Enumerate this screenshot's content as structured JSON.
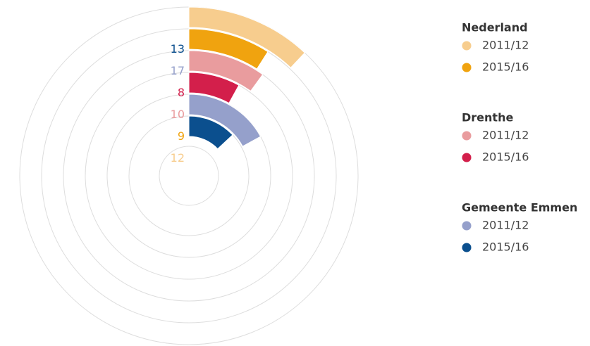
{
  "chart_data": {
    "type": "radial_bar",
    "anglelim": [
      0,
      100
    ],
    "groups": [
      {
        "name": "Nederland",
        "series": [
          {
            "name": "2011/12",
            "color": "#f7cd8e",
            "value": 12
          },
          {
            "name": "2015/16",
            "color": "#f0a30f",
            "value": 9
          }
        ]
      },
      {
        "name": "Drenthe",
        "series": [
          {
            "name": "2011/12",
            "color": "#e99c9e",
            "value": 10
          },
          {
            "name": "2015/16",
            "color": "#d31f4b",
            "value": 8
          }
        ]
      },
      {
        "name": "Gemeente Emmen",
        "series": [
          {
            "name": "2011/12",
            "color": "#95a0cb",
            "value": 17
          },
          {
            "name": "2015/16",
            "color": "#0b4f8e",
            "value": 13
          }
        ]
      }
    ]
  }
}
